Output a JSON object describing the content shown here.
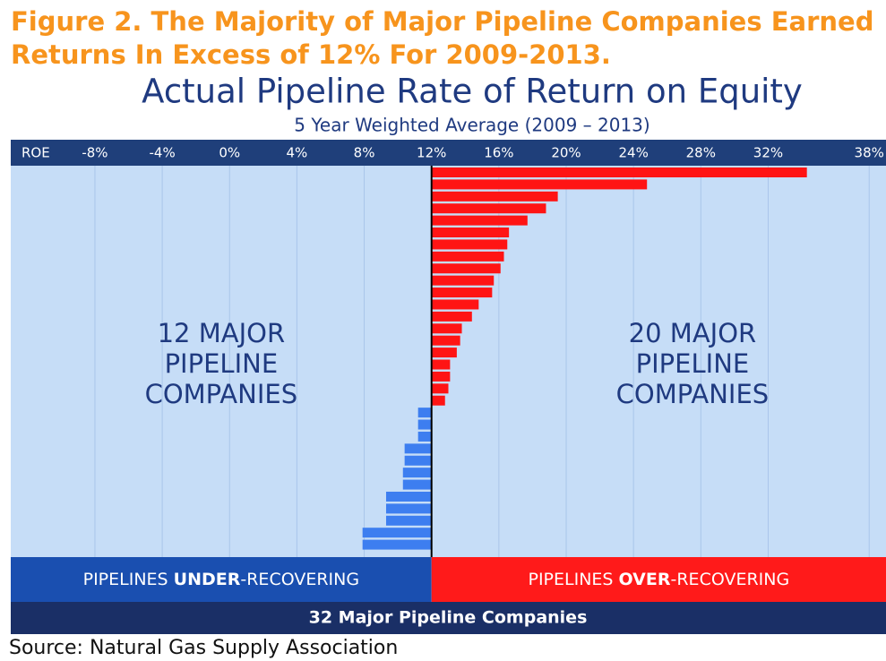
{
  "chart_data": {
    "type": "bar",
    "orientation": "horizontal",
    "caption": [
      "Figure 2. The Majority of Major Pipeline Companies Earned",
      "Returns In Excess of 12% For 2009-2013."
    ],
    "title": "Actual Pipeline Rate of Return on Equity",
    "subtitle": "5 Year Weighted Average (2009 – 2013)",
    "x_label": "ROE",
    "xlim": [
      -13,
      39
    ],
    "xticks": [
      {
        "value": -8,
        "label": "-8%"
      },
      {
        "value": -4,
        "label": "-4%"
      },
      {
        "value": 0,
        "label": "0%"
      },
      {
        "value": 4,
        "label": "4%"
      },
      {
        "value": 8,
        "label": "8%"
      },
      {
        "value": 12,
        "label": "12%"
      },
      {
        "value": 16,
        "label": "16%"
      },
      {
        "value": 20,
        "label": "20%"
      },
      {
        "value": 24,
        "label": "24%"
      },
      {
        "value": 28,
        "label": "28%"
      },
      {
        "value": 32,
        "label": "32%"
      },
      {
        "value": 38,
        "label": "38%"
      }
    ],
    "grid": true,
    "baseline": 12,
    "colors": {
      "above": "#ff1414",
      "below": "#3d7ef0"
    },
    "values": [
      34.3,
      24.8,
      19.5,
      18.8,
      17.7,
      16.6,
      16.5,
      16.3,
      16.1,
      15.7,
      15.6,
      14.8,
      14.4,
      13.8,
      13.7,
      13.5,
      13.1,
      13.1,
      13.0,
      12.8,
      11.2,
      11.2,
      11.2,
      10.4,
      10.4,
      10.3,
      10.3,
      9.3,
      9.3,
      9.3,
      7.9,
      7.9
    ],
    "annotations": {
      "left": [
        "12 MAJOR",
        "PIPELINE",
        "COMPANIES"
      ],
      "right": [
        "20 MAJOR",
        "PIPELINE",
        "COMPANIES"
      ]
    },
    "under_label": [
      "PIPELINES ",
      "UNDER",
      "-RECOVERING"
    ],
    "over_label": [
      "PIPELINES ",
      "OVER",
      "-RECOVERING"
    ],
    "footer": "32 Major Pipeline Companies",
    "source": "Source: Natural Gas Supply Association"
  }
}
